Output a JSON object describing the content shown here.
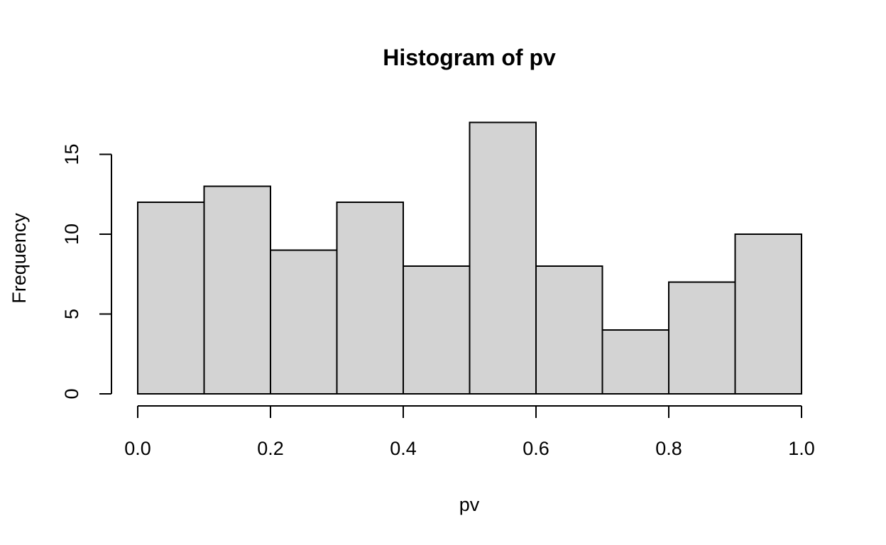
{
  "chart_data": {
    "type": "bar",
    "title": "Histogram of pv",
    "xlabel": "pv",
    "ylabel": "Frequency",
    "bins": [
      {
        "start": 0.0,
        "end": 0.1,
        "count": 12
      },
      {
        "start": 0.1,
        "end": 0.2,
        "count": 13
      },
      {
        "start": 0.2,
        "end": 0.3,
        "count": 9
      },
      {
        "start": 0.3,
        "end": 0.4,
        "count": 12
      },
      {
        "start": 0.4,
        "end": 0.5,
        "count": 8
      },
      {
        "start": 0.5,
        "end": 0.6,
        "count": 17
      },
      {
        "start": 0.6,
        "end": 0.7,
        "count": 8
      },
      {
        "start": 0.7,
        "end": 0.8,
        "count": 4
      },
      {
        "start": 0.8,
        "end": 0.9,
        "count": 7
      },
      {
        "start": 0.9,
        "end": 1.0,
        "count": 10
      }
    ],
    "xticks": [
      "0.0",
      "0.2",
      "0.4",
      "0.6",
      "0.8",
      "1.0"
    ],
    "yticks": [
      "0",
      "5",
      "10",
      "15"
    ],
    "xlim": [
      0,
      1
    ],
    "ylim": [
      0,
      17
    ],
    "grid": false,
    "bar_color": "#d3d3d3",
    "edge_color": "#000000"
  }
}
